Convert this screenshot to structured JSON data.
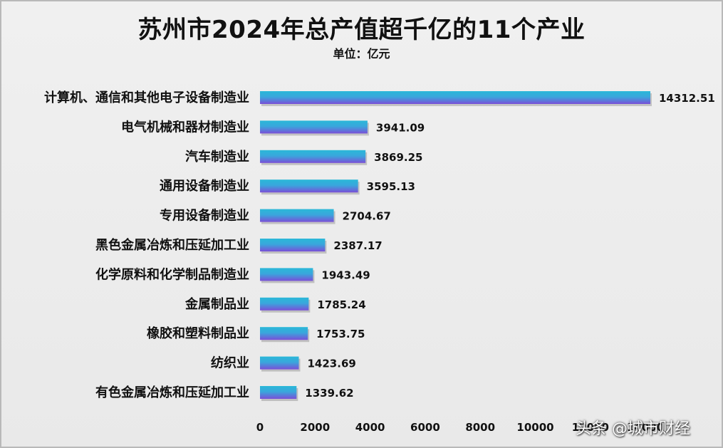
{
  "chart_data": {
    "type": "bar",
    "orientation": "horizontal",
    "title": "苏州市2024年总产值超千亿的11个产业",
    "subtitle": "单位：亿元",
    "categories": [
      "计算机、通信和其他电子设备制造业",
      "电气机械和器材制造业",
      "汽车制造业",
      "通用设备制造业",
      "专用设备制造业",
      "黑色金属冶炼和压延加工业",
      "化学原料和化学制品制造业",
      "金属制品业",
      "橡胶和塑料制品业",
      "纺织业",
      "有色金属冶炼和压延加工业"
    ],
    "values": [
      14312.51,
      3941.09,
      3869.25,
      3595.13,
      2704.67,
      2387.17,
      1943.49,
      1785.24,
      1753.75,
      1423.69,
      1339.62
    ],
    "value_labels": [
      "14312.51",
      "3941.09",
      "3869.25",
      "3595.13",
      "2704.67",
      "2387.17",
      "1943.49",
      "1785.24",
      "1753.75",
      "1423.69",
      "1339.62"
    ],
    "x_ticks": [
      "0",
      "2000",
      "4000",
      "6000",
      "8000",
      "10000",
      "12000",
      "14000"
    ],
    "xlim": [
      0,
      14000
    ],
    "grid": false,
    "legend": "none",
    "colors": {
      "bar_top": "#2ab8d8",
      "bar_bottom": "#7a4fd8",
      "background": "#ececec"
    }
  },
  "watermark": "头条 @城市财经"
}
